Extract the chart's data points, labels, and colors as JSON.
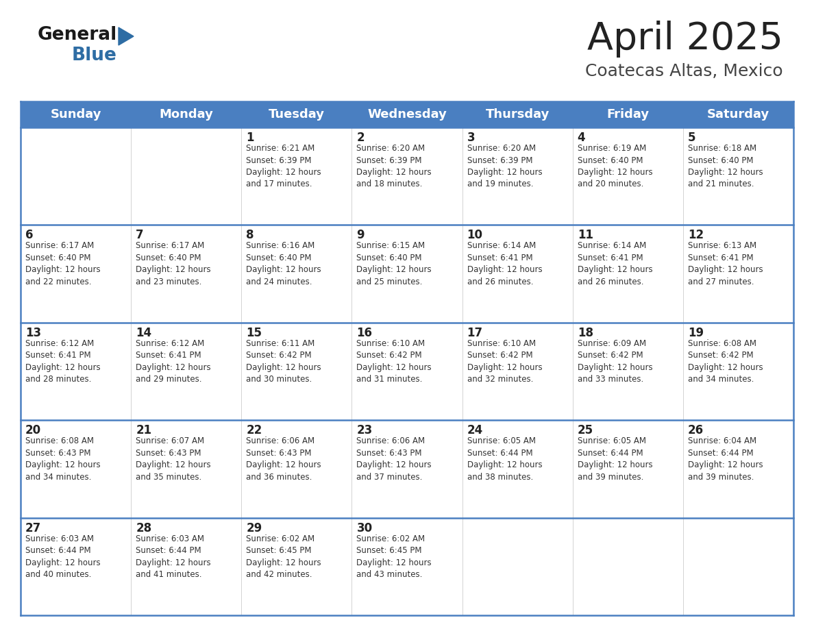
{
  "title": "April 2025",
  "subtitle": "Coatecas Altas, Mexico",
  "header_bg": "#4a7fc1",
  "header_text_color": "#FFFFFF",
  "days_of_week": [
    "Sunday",
    "Monday",
    "Tuesday",
    "Wednesday",
    "Thursday",
    "Friday",
    "Saturday"
  ],
  "weeks": [
    [
      {
        "day": null,
        "info": null
      },
      {
        "day": null,
        "info": null
      },
      {
        "day": 1,
        "info": "Sunrise: 6:21 AM\nSunset: 6:39 PM\nDaylight: 12 hours\nand 17 minutes."
      },
      {
        "day": 2,
        "info": "Sunrise: 6:20 AM\nSunset: 6:39 PM\nDaylight: 12 hours\nand 18 minutes."
      },
      {
        "day": 3,
        "info": "Sunrise: 6:20 AM\nSunset: 6:39 PM\nDaylight: 12 hours\nand 19 minutes."
      },
      {
        "day": 4,
        "info": "Sunrise: 6:19 AM\nSunset: 6:40 PM\nDaylight: 12 hours\nand 20 minutes."
      },
      {
        "day": 5,
        "info": "Sunrise: 6:18 AM\nSunset: 6:40 PM\nDaylight: 12 hours\nand 21 minutes."
      }
    ],
    [
      {
        "day": 6,
        "info": "Sunrise: 6:17 AM\nSunset: 6:40 PM\nDaylight: 12 hours\nand 22 minutes."
      },
      {
        "day": 7,
        "info": "Sunrise: 6:17 AM\nSunset: 6:40 PM\nDaylight: 12 hours\nand 23 minutes."
      },
      {
        "day": 8,
        "info": "Sunrise: 6:16 AM\nSunset: 6:40 PM\nDaylight: 12 hours\nand 24 minutes."
      },
      {
        "day": 9,
        "info": "Sunrise: 6:15 AM\nSunset: 6:40 PM\nDaylight: 12 hours\nand 25 minutes."
      },
      {
        "day": 10,
        "info": "Sunrise: 6:14 AM\nSunset: 6:41 PM\nDaylight: 12 hours\nand 26 minutes."
      },
      {
        "day": 11,
        "info": "Sunrise: 6:14 AM\nSunset: 6:41 PM\nDaylight: 12 hours\nand 26 minutes."
      },
      {
        "day": 12,
        "info": "Sunrise: 6:13 AM\nSunset: 6:41 PM\nDaylight: 12 hours\nand 27 minutes."
      }
    ],
    [
      {
        "day": 13,
        "info": "Sunrise: 6:12 AM\nSunset: 6:41 PM\nDaylight: 12 hours\nand 28 minutes."
      },
      {
        "day": 14,
        "info": "Sunrise: 6:12 AM\nSunset: 6:41 PM\nDaylight: 12 hours\nand 29 minutes."
      },
      {
        "day": 15,
        "info": "Sunrise: 6:11 AM\nSunset: 6:42 PM\nDaylight: 12 hours\nand 30 minutes."
      },
      {
        "day": 16,
        "info": "Sunrise: 6:10 AM\nSunset: 6:42 PM\nDaylight: 12 hours\nand 31 minutes."
      },
      {
        "day": 17,
        "info": "Sunrise: 6:10 AM\nSunset: 6:42 PM\nDaylight: 12 hours\nand 32 minutes."
      },
      {
        "day": 18,
        "info": "Sunrise: 6:09 AM\nSunset: 6:42 PM\nDaylight: 12 hours\nand 33 minutes."
      },
      {
        "day": 19,
        "info": "Sunrise: 6:08 AM\nSunset: 6:42 PM\nDaylight: 12 hours\nand 34 minutes."
      }
    ],
    [
      {
        "day": 20,
        "info": "Sunrise: 6:08 AM\nSunset: 6:43 PM\nDaylight: 12 hours\nand 34 minutes."
      },
      {
        "day": 21,
        "info": "Sunrise: 6:07 AM\nSunset: 6:43 PM\nDaylight: 12 hours\nand 35 minutes."
      },
      {
        "day": 22,
        "info": "Sunrise: 6:06 AM\nSunset: 6:43 PM\nDaylight: 12 hours\nand 36 minutes."
      },
      {
        "day": 23,
        "info": "Sunrise: 6:06 AM\nSunset: 6:43 PM\nDaylight: 12 hours\nand 37 minutes."
      },
      {
        "day": 24,
        "info": "Sunrise: 6:05 AM\nSunset: 6:44 PM\nDaylight: 12 hours\nand 38 minutes."
      },
      {
        "day": 25,
        "info": "Sunrise: 6:05 AM\nSunset: 6:44 PM\nDaylight: 12 hours\nand 39 minutes."
      },
      {
        "day": 26,
        "info": "Sunrise: 6:04 AM\nSunset: 6:44 PM\nDaylight: 12 hours\nand 39 minutes."
      }
    ],
    [
      {
        "day": 27,
        "info": "Sunrise: 6:03 AM\nSunset: 6:44 PM\nDaylight: 12 hours\nand 40 minutes."
      },
      {
        "day": 28,
        "info": "Sunrise: 6:03 AM\nSunset: 6:44 PM\nDaylight: 12 hours\nand 41 minutes."
      },
      {
        "day": 29,
        "info": "Sunrise: 6:02 AM\nSunset: 6:45 PM\nDaylight: 12 hours\nand 42 minutes."
      },
      {
        "day": 30,
        "info": "Sunrise: 6:02 AM\nSunset: 6:45 PM\nDaylight: 12 hours\nand 43 minutes."
      },
      {
        "day": null,
        "info": null
      },
      {
        "day": null,
        "info": null
      },
      {
        "day": null,
        "info": null
      }
    ]
  ],
  "bg_color": "#FFFFFF",
  "cell_bg": "#FFFFFF",
  "row_sep_color": "#4a7fc1",
  "day_num_color": "#222222",
  "info_text_color": "#333333",
  "logo_general_color": "#1a1a1a",
  "logo_blue_color": "#2e6da4",
  "logo_triangle_color": "#2e6da4",
  "title_color": "#222222",
  "subtitle_color": "#444444",
  "title_fontsize": 40,
  "subtitle_fontsize": 18,
  "header_fontsize": 13,
  "day_num_fontsize": 12,
  "info_fontsize": 8.5
}
